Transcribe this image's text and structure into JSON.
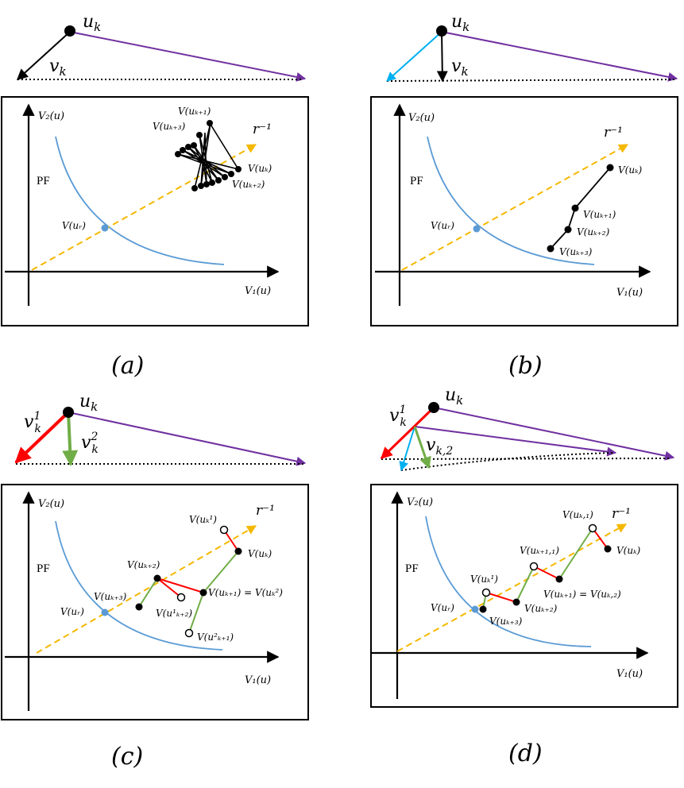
{
  "colors": {
    "pf_curve": "#5b9bd5",
    "ray": "#f5b800",
    "purple": "#7030a0",
    "red": "#ff0000",
    "green": "#70ad47",
    "cyan": "#00b0f0",
    "black": "#000000"
  },
  "common": {
    "pf": "PF",
    "y_axis": "V₂(u)",
    "x_axis": "V₁(u)",
    "ray": "r⁻¹",
    "vur": "V(uᵣ)",
    "uk": "u"
  },
  "panel_a": {
    "caption": "(a)",
    "vk": "v",
    "labels": {
      "k1": "V(uₖ₊₁)",
      "k3": "V(uₖ₊₃)",
      "k": "V(uₖ)",
      "k2": "V(uₖ₊₂)"
    }
  },
  "panel_b": {
    "caption": "(b)",
    "vk": "v",
    "labels": {
      "k": "V(uₖ)",
      "k1": "V(uₖ₊₁)",
      "k2": "V(uₖ₊₂)",
      "k3": "V(uₖ₊₃)"
    }
  },
  "panel_c": {
    "caption": "(c)",
    "v1": "v",
    "v2": "v",
    "labels": {
      "k1sup": "V(uₖ¹)",
      "k": "V(uₖ)",
      "k2": "V(uₖ₊₂)",
      "k3": "V(uₖ₊₃)",
      "k1eq": "V(uₖ₊₁) = V(uₖ²)",
      "k21": "V(u¹ₖ₊₂)",
      "k12": "V(u²ₖ₊₁)"
    }
  },
  "panel_d": {
    "caption": "(d)",
    "v1": "v",
    "v2": "v",
    "labels": {
      "k1": "V(uₖ,₁)",
      "k": "V(uₖ)",
      "k11": "V(uₖ₊₁,₁)",
      "k1eq": "V(uₖ₊₁) = V(uₖ,₂)",
      "ksup": "V(uₖ¹)",
      "k2": "V(uₖ₊₂)",
      "k3": "V(uₖ₊₃)"
    }
  }
}
